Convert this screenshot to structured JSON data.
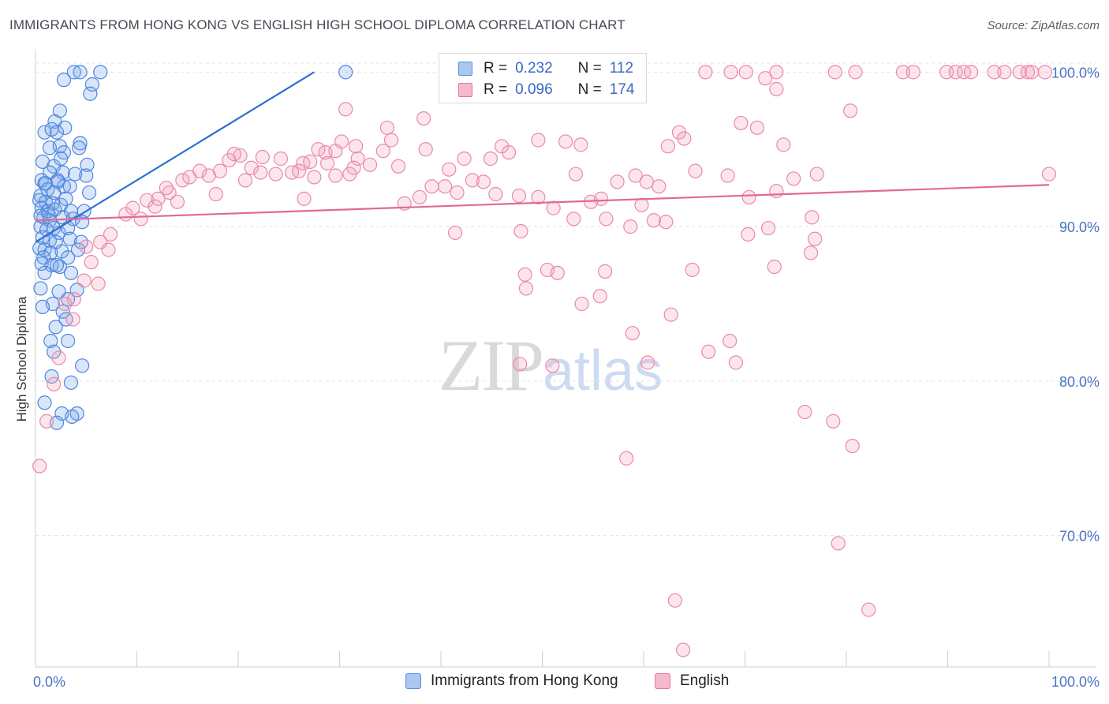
{
  "header": {
    "title": "IMMIGRANTS FROM HONG KONG VS ENGLISH HIGH SCHOOL DIPLOMA CORRELATION CHART",
    "source": "Source: ZipAtlas.com"
  },
  "watermark": {
    "zip": "ZIP",
    "atlas": "atlas"
  },
  "legend": {
    "r_label": "R =",
    "n_label": "N =",
    "series": [
      {
        "name": "Immigrants from Hong Kong",
        "r": "0.232",
        "n": "112",
        "color": "#5b8fe0",
        "fill": "#aac6f1"
      },
      {
        "name": "English",
        "r": "0.096",
        "n": "174",
        "color": "#e8769b",
        "fill": "#f6b9cc"
      }
    ]
  },
  "chart_data": {
    "type": "scatter",
    "title": "IMMIGRANTS FROM HONG KONG VS ENGLISH HIGH SCHOOL DIPLOMA CORRELATION CHART",
    "xlabel": "",
    "ylabel": "High School Diploma",
    "xlim": [
      0,
      100
    ],
    "ylim": [
      61.5,
      101.5
    ],
    "x_tick_labels": [
      {
        "value": 0,
        "label": "0.0%"
      },
      {
        "value": 100,
        "label": "100.0%"
      }
    ],
    "y_tick_labels": [
      {
        "value": 100,
        "label": "100.0%"
      },
      {
        "value": 90,
        "label": "90.0%"
      },
      {
        "value": 80,
        "label": "80.0%"
      },
      {
        "value": 70,
        "label": "70.0%"
      }
    ],
    "grid": true,
    "series": [
      {
        "name": "Immigrants from Hong Kong",
        "color": "#5b8fe0",
        "trendline": {
          "x": [
            0,
            27.5
          ],
          "y": [
            89.0,
            100.0
          ],
          "color": "#2d6fd1"
        },
        "points": [
          [
            3.8,
            100
          ],
          [
            4.4,
            100
          ],
          [
            6.4,
            100
          ],
          [
            30.6,
            100
          ],
          [
            2.8,
            99.5
          ],
          [
            5.6,
            99.2
          ],
          [
            5.4,
            98.6
          ],
          [
            2.4,
            97.5
          ],
          [
            1.9,
            96.8
          ],
          [
            2.9,
            96.4
          ],
          [
            0.9,
            96.1
          ],
          [
            2.1,
            96.1
          ],
          [
            4.4,
            95.4
          ],
          [
            1.4,
            95.1
          ],
          [
            2.4,
            95.2
          ],
          [
            4.3,
            95.1
          ],
          [
            2.8,
            94.8
          ],
          [
            0.7,
            94.2
          ],
          [
            1.8,
            93.9
          ],
          [
            5.1,
            94.0
          ],
          [
            1.4,
            93.5
          ],
          [
            2.7,
            93.5
          ],
          [
            3.9,
            93.4
          ],
          [
            5.0,
            93.3
          ],
          [
            0.6,
            93.0
          ],
          [
            0.9,
            92.8
          ],
          [
            2.2,
            92.9
          ],
          [
            2.8,
            92.6
          ],
          [
            3.4,
            92.6
          ],
          [
            1.2,
            92.4
          ],
          [
            0.5,
            92.0
          ],
          [
            1.8,
            92.2
          ],
          [
            5.3,
            92.2
          ],
          [
            0.4,
            91.7
          ],
          [
            1.0,
            91.6
          ],
          [
            1.7,
            91.5
          ],
          [
            2.5,
            91.4
          ],
          [
            0.6,
            91.2
          ],
          [
            1.2,
            91.0
          ],
          [
            1.9,
            91.1
          ],
          [
            3.5,
            91.0
          ],
          [
            4.8,
            91.0
          ],
          [
            0.8,
            90.6
          ],
          [
            1.4,
            90.4
          ],
          [
            2.7,
            90.6
          ],
          [
            3.7,
            90.5
          ],
          [
            4.6,
            90.3
          ],
          [
            0.5,
            90.0
          ],
          [
            1.1,
            89.8
          ],
          [
            1.8,
            89.9
          ],
          [
            2.3,
            89.6
          ],
          [
            3.2,
            89.9
          ],
          [
            0.7,
            89.3
          ],
          [
            1.4,
            89.1
          ],
          [
            2.0,
            89.0
          ],
          [
            3.4,
            89.2
          ],
          [
            4.5,
            89.0
          ],
          [
            0.4,
            88.6
          ],
          [
            0.9,
            88.5
          ],
          [
            1.5,
            88.3
          ],
          [
            2.6,
            88.4
          ],
          [
            4.2,
            88.5
          ],
          [
            3.2,
            88.0
          ],
          [
            0.6,
            87.6
          ],
          [
            1.6,
            87.5
          ],
          [
            2.4,
            87.4
          ],
          [
            0.9,
            87.0
          ],
          [
            3.5,
            87.0
          ],
          [
            0.5,
            86.0
          ],
          [
            2.3,
            85.8
          ],
          [
            4.1,
            85.9
          ],
          [
            3.2,
            85.3
          ],
          [
            1.7,
            85.0
          ],
          [
            2.7,
            84.5
          ],
          [
            0.7,
            84.8
          ],
          [
            3.0,
            84.0
          ],
          [
            2.0,
            83.5
          ],
          [
            1.5,
            82.6
          ],
          [
            3.2,
            82.6
          ],
          [
            1.8,
            81.9
          ],
          [
            4.6,
            81.0
          ],
          [
            1.6,
            80.3
          ],
          [
            3.5,
            79.9
          ],
          [
            0.9,
            78.6
          ],
          [
            2.6,
            77.9
          ],
          [
            4.1,
            77.9
          ],
          [
            3.6,
            77.7
          ],
          [
            2.1,
            77.3
          ],
          [
            2.2,
            93.0
          ],
          [
            1.3,
            90.8
          ],
          [
            3.0,
            91.8
          ],
          [
            0.8,
            88.0
          ],
          [
            2.1,
            87.5
          ],
          [
            1.0,
            92.8
          ],
          [
            2.5,
            94.4
          ],
          [
            1.6,
            96.3
          ],
          [
            0.5,
            90.7
          ]
        ]
      },
      {
        "name": "English",
        "color": "#e8769b",
        "trendline": {
          "x": [
            0,
            100
          ],
          "y": [
            90.4,
            92.7
          ],
          "color": "#e06a93"
        },
        "points": [
          [
            66.1,
            100
          ],
          [
            68.6,
            100
          ],
          [
            70.1,
            100
          ],
          [
            73.1,
            100
          ],
          [
            78.9,
            100
          ],
          [
            80.9,
            100
          ],
          [
            85.6,
            100
          ],
          [
            86.6,
            100
          ],
          [
            89.9,
            100
          ],
          [
            90.8,
            100
          ],
          [
            91.6,
            100
          ],
          [
            92.3,
            100
          ],
          [
            94.6,
            100
          ],
          [
            95.6,
            100
          ],
          [
            97.1,
            100
          ],
          [
            97.9,
            100
          ],
          [
            98.3,
            100
          ],
          [
            99.6,
            100
          ],
          [
            72.0,
            99.6
          ],
          [
            73.1,
            98.9
          ],
          [
            80.4,
            97.5
          ],
          [
            30.6,
            97.6
          ],
          [
            38.3,
            97.0
          ],
          [
            34.7,
            96.4
          ],
          [
            69.6,
            96.7
          ],
          [
            71.2,
            96.4
          ],
          [
            63.5,
            96.1
          ],
          [
            64.0,
            95.7
          ],
          [
            30.2,
            95.5
          ],
          [
            31.6,
            95.2
          ],
          [
            35.1,
            95.6
          ],
          [
            49.6,
            95.6
          ],
          [
            52.3,
            95.5
          ],
          [
            53.8,
            95.3
          ],
          [
            62.4,
            95.2
          ],
          [
            73.8,
            95.3
          ],
          [
            38.5,
            95.0
          ],
          [
            46.0,
            95.2
          ],
          [
            46.7,
            94.8
          ],
          [
            28.6,
            94.8
          ],
          [
            29.6,
            94.9
          ],
          [
            31.8,
            94.4
          ],
          [
            34.3,
            94.9
          ],
          [
            42.3,
            94.4
          ],
          [
            20.2,
            94.6
          ],
          [
            22.4,
            94.5
          ],
          [
            24.2,
            94.4
          ],
          [
            26.4,
            94.1
          ],
          [
            27.1,
            94.2
          ],
          [
            28.8,
            94.1
          ],
          [
            31.4,
            93.8
          ],
          [
            35.8,
            93.9
          ],
          [
            40.8,
            93.7
          ],
          [
            19.1,
            94.3
          ],
          [
            21.3,
            93.8
          ],
          [
            18.2,
            93.6
          ],
          [
            23.7,
            93.4
          ],
          [
            25.3,
            93.5
          ],
          [
            27.5,
            93.2
          ],
          [
            29.6,
            93.3
          ],
          [
            31.0,
            93.4
          ],
          [
            16.2,
            93.6
          ],
          [
            17.1,
            93.3
          ],
          [
            15.2,
            93.2
          ],
          [
            14.5,
            93.0
          ],
          [
            20.7,
            93.0
          ],
          [
            22.2,
            93.5
          ],
          [
            26.0,
            93.6
          ],
          [
            53.3,
            93.4
          ],
          [
            59.2,
            93.3
          ],
          [
            65.1,
            93.6
          ],
          [
            68.3,
            93.3
          ],
          [
            74.8,
            93.1
          ],
          [
            77.1,
            93.4
          ],
          [
            100,
            93.4
          ],
          [
            43.1,
            93.0
          ],
          [
            44.2,
            92.9
          ],
          [
            57.4,
            92.9
          ],
          [
            61.5,
            92.6
          ],
          [
            39.1,
            92.6
          ],
          [
            41.6,
            92.2
          ],
          [
            45.4,
            92.1
          ],
          [
            47.7,
            92.0
          ],
          [
            49.6,
            91.9
          ],
          [
            55.8,
            91.8
          ],
          [
            70.4,
            91.9
          ],
          [
            73.1,
            92.3
          ],
          [
            17.8,
            92.1
          ],
          [
            13.2,
            92.2
          ],
          [
            12.1,
            91.8
          ],
          [
            11.0,
            91.7
          ],
          [
            9.6,
            91.2
          ],
          [
            8.9,
            90.8
          ],
          [
            11.8,
            91.3
          ],
          [
            26.5,
            91.8
          ],
          [
            36.4,
            91.5
          ],
          [
            51.1,
            91.2
          ],
          [
            54.8,
            91.6
          ],
          [
            59.8,
            91.4
          ],
          [
            61.0,
            90.4
          ],
          [
            53.1,
            90.5
          ],
          [
            56.3,
            90.5
          ],
          [
            58.7,
            90.0
          ],
          [
            62.2,
            90.3
          ],
          [
            76.6,
            90.6
          ],
          [
            72.3,
            89.9
          ],
          [
            70.3,
            89.5
          ],
          [
            76.9,
            89.2
          ],
          [
            47.9,
            89.7
          ],
          [
            41.4,
            89.6
          ],
          [
            7.4,
            89.5
          ],
          [
            6.4,
            89.0
          ],
          [
            7.2,
            88.5
          ],
          [
            5.0,
            88.7
          ],
          [
            5.5,
            87.7
          ],
          [
            76.5,
            88.3
          ],
          [
            72.9,
            87.4
          ],
          [
            64.8,
            87.2
          ],
          [
            56.2,
            87.1
          ],
          [
            50.5,
            87.2
          ],
          [
            51.5,
            87.0
          ],
          [
            48.3,
            86.9
          ],
          [
            6.2,
            86.3
          ],
          [
            4.8,
            86.5
          ],
          [
            48.4,
            86.0
          ],
          [
            55.7,
            85.5
          ],
          [
            53.9,
            85.0
          ],
          [
            3.8,
            85.3
          ],
          [
            2.9,
            85.0
          ],
          [
            3.7,
            84.0
          ],
          [
            62.7,
            84.3
          ],
          [
            58.9,
            83.1
          ],
          [
            68.5,
            82.6
          ],
          [
            66.4,
            81.9
          ],
          [
            60.4,
            81.2
          ],
          [
            47.8,
            81.1
          ],
          [
            51.0,
            81.0
          ],
          [
            69.1,
            81.2
          ],
          [
            2.3,
            81.5
          ],
          [
            1.8,
            79.8
          ],
          [
            75.9,
            78.0
          ],
          [
            78.7,
            77.4
          ],
          [
            80.6,
            75.8
          ],
          [
            58.3,
            75.0
          ],
          [
            1.1,
            77.4
          ],
          [
            0.4,
            74.5
          ],
          [
            79.2,
            69.5
          ],
          [
            63.1,
            65.8
          ],
          [
            82.2,
            65.2
          ],
          [
            63.9,
            62.6
          ],
          [
            40.4,
            92.6
          ],
          [
            37.9,
            91.9
          ],
          [
            12.9,
            92.5
          ],
          [
            10.4,
            90.5
          ],
          [
            14.0,
            91.6
          ],
          [
            27.9,
            95.0
          ],
          [
            33.0,
            94.0
          ],
          [
            19.6,
            94.7
          ],
          [
            44.9,
            94.4
          ],
          [
            60.3,
            92.9
          ]
        ]
      }
    ]
  }
}
